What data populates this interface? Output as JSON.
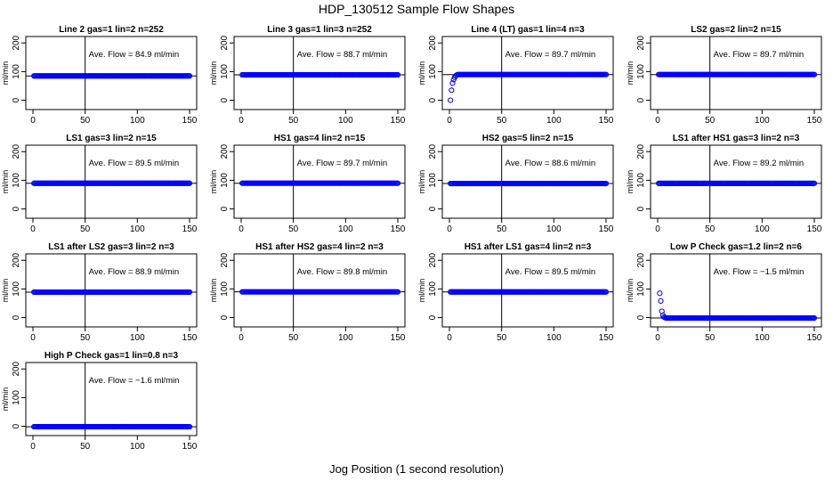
{
  "page": {
    "title": "HDP_130512  Sample Flow Shapes",
    "xlabel": "Jog Position (1 second resolution)"
  },
  "style": {
    "point_color": "#0000ff",
    "line_color": "#000000"
  },
  "chart_data": [
    {
      "type": "scatter",
      "title": "Line 2 gas=1 lin=2 n=252",
      "ylabel": "ml/min",
      "xlim": [
        0,
        150
      ],
      "ylim": [
        -20,
        210
      ],
      "xticks": [
        0,
        50,
        100,
        150
      ],
      "yticks": [
        0,
        100,
        200
      ],
      "vline": 50,
      "hline": 84.9,
      "annotation": "Ave. Flow = 84.9  ml/min",
      "series": [
        {
          "x_start": 1,
          "x_end": 150,
          "y_start": 84.9,
          "y_end": 84.9,
          "ramp": []
        }
      ]
    },
    {
      "type": "scatter",
      "title": "Line 3 gas=1 lin=3 n=252",
      "ylabel": "ml/min",
      "xlim": [
        0,
        150
      ],
      "ylim": [
        -20,
        210
      ],
      "xticks": [
        0,
        50,
        100,
        150
      ],
      "yticks": [
        0,
        100,
        200
      ],
      "vline": 50,
      "hline": 88.7,
      "annotation": "Ave. Flow = 88.7  ml/min",
      "series": [
        {
          "x_start": 1,
          "x_end": 150,
          "y_start": 88.7,
          "y_end": 88.7,
          "ramp": []
        }
      ]
    },
    {
      "type": "scatter",
      "title": "Line 4 (LT) gas=1 lin=4 n=3",
      "ylabel": "ml/min",
      "xlim": [
        0,
        150
      ],
      "ylim": [
        -20,
        210
      ],
      "xticks": [
        0,
        50,
        100,
        150
      ],
      "yticks": [
        0,
        100,
        200
      ],
      "vline": 50,
      "hline": 89.7,
      "annotation": "Ave. Flow = 89.7  ml/min",
      "series": [
        {
          "x_start": 8,
          "x_end": 150,
          "y_start": 89.7,
          "y_end": 89.7,
          "ramp": [
            [
              1,
              0
            ],
            [
              2,
              35
            ],
            [
              3,
              60
            ],
            [
              4,
              72
            ],
            [
              5,
              80
            ],
            [
              6,
              85
            ],
            [
              7,
              88
            ]
          ]
        }
      ]
    },
    {
      "type": "scatter",
      "title": "LS2 gas=2 lin=2 n=15",
      "ylabel": "ml/min",
      "xlim": [
        0,
        150
      ],
      "ylim": [
        -20,
        210
      ],
      "xticks": [
        0,
        50,
        100,
        150
      ],
      "yticks": [
        0,
        100,
        200
      ],
      "vline": 50,
      "hline": 89.7,
      "annotation": "Ave. Flow = 89.7  ml/min",
      "series": [
        {
          "x_start": 1,
          "x_end": 150,
          "y_start": 89.7,
          "y_end": 89.7,
          "ramp": []
        }
      ]
    },
    {
      "type": "scatter",
      "title": "LS1 gas=3 lin=2 n=15",
      "ylabel": "ml/min",
      "xlim": [
        0,
        150
      ],
      "ylim": [
        -20,
        210
      ],
      "xticks": [
        0,
        50,
        100,
        150
      ],
      "yticks": [
        0,
        100,
        200
      ],
      "vline": 50,
      "hline": 89.5,
      "annotation": "Ave. Flow = 89.5  ml/min",
      "series": [
        {
          "x_start": 1,
          "x_end": 150,
          "y_start": 89.5,
          "y_end": 89.5,
          "ramp": []
        }
      ]
    },
    {
      "type": "scatter",
      "title": "HS1 gas=4 lin=2 n=15",
      "ylabel": "ml/min",
      "xlim": [
        0,
        150
      ],
      "ylim": [
        -20,
        210
      ],
      "xticks": [
        0,
        50,
        100,
        150
      ],
      "yticks": [
        0,
        100,
        200
      ],
      "vline": 50,
      "hline": 89.7,
      "annotation": "Ave. Flow = 89.7  ml/min",
      "series": [
        {
          "x_start": 1,
          "x_end": 150,
          "y_start": 89.7,
          "y_end": 89.7,
          "ramp": []
        }
      ]
    },
    {
      "type": "scatter",
      "title": "HS2 gas=5 lin=2 n=15",
      "ylabel": "ml/min",
      "xlim": [
        0,
        150
      ],
      "ylim": [
        -20,
        210
      ],
      "xticks": [
        0,
        50,
        100,
        150
      ],
      "yticks": [
        0,
        100,
        200
      ],
      "vline": 50,
      "hline": 88.6,
      "annotation": "Ave. Flow = 88.6  ml/min",
      "series": [
        {
          "x_start": 1,
          "x_end": 150,
          "y_start": 88.6,
          "y_end": 88.6,
          "ramp": []
        }
      ]
    },
    {
      "type": "scatter",
      "title": "LS1 after HS1 gas=3 lin=2 n=3",
      "ylabel": "ml/min",
      "xlim": [
        0,
        150
      ],
      "ylim": [
        -20,
        210
      ],
      "xticks": [
        0,
        50,
        100,
        150
      ],
      "yticks": [
        0,
        100,
        200
      ],
      "vline": 50,
      "hline": 89.2,
      "annotation": "Ave. Flow = 89.2  ml/min",
      "series": [
        {
          "x_start": 1,
          "x_end": 150,
          "y_start": 89.2,
          "y_end": 89.2,
          "ramp": []
        }
      ]
    },
    {
      "type": "scatter",
      "title": "LS1 after LS2 gas=3 lin=2 n=3",
      "ylabel": "ml/min",
      "xlim": [
        0,
        150
      ],
      "ylim": [
        -20,
        210
      ],
      "xticks": [
        0,
        50,
        100,
        150
      ],
      "yticks": [
        0,
        100,
        200
      ],
      "vline": 50,
      "hline": 88.9,
      "annotation": "Ave. Flow = 88.9  ml/min",
      "series": [
        {
          "x_start": 1,
          "x_end": 150,
          "y_start": 88.9,
          "y_end": 88.9,
          "ramp": []
        }
      ]
    },
    {
      "type": "scatter",
      "title": "HS1 after HS2 gas=4 lin=2 n=3",
      "ylabel": "ml/min",
      "xlim": [
        0,
        150
      ],
      "ylim": [
        -20,
        210
      ],
      "xticks": [
        0,
        50,
        100,
        150
      ],
      "yticks": [
        0,
        100,
        200
      ],
      "vline": 50,
      "hline": 89.8,
      "annotation": "Ave. Flow = 89.8  ml/min",
      "series": [
        {
          "x_start": 1,
          "x_end": 150,
          "y_start": 89.8,
          "y_end": 89.8,
          "ramp": []
        }
      ]
    },
    {
      "type": "scatter",
      "title": "HS1 after LS1 gas=4 lin=2 n=3",
      "ylabel": "ml/min",
      "xlim": [
        0,
        150
      ],
      "ylim": [
        -20,
        210
      ],
      "xticks": [
        0,
        50,
        100,
        150
      ],
      "yticks": [
        0,
        100,
        200
      ],
      "vline": 50,
      "hline": 89.5,
      "annotation": "Ave. Flow = 89.5  ml/min",
      "series": [
        {
          "x_start": 1,
          "x_end": 150,
          "y_start": 89.5,
          "y_end": 89.5,
          "ramp": []
        }
      ]
    },
    {
      "type": "scatter",
      "title": "Low P Check gas=1.2 lin=2 n=6",
      "ylabel": "ml/min",
      "xlim": [
        0,
        150
      ],
      "ylim": [
        -20,
        210
      ],
      "xticks": [
        0,
        50,
        100,
        150
      ],
      "yticks": [
        0,
        100,
        200
      ],
      "vline": 50,
      "hline": -1.5,
      "annotation": "Ave. Flow = −1.5  ml/min",
      "series": [
        {
          "x_start": 8,
          "x_end": 150,
          "y_start": -1.5,
          "y_end": -1.5,
          "ramp": [
            [
              2,
              85
            ],
            [
              3,
              58
            ],
            [
              4,
              22
            ],
            [
              5,
              8
            ],
            [
              6,
              2
            ],
            [
              7,
              0
            ]
          ]
        }
      ]
    },
    {
      "type": "scatter",
      "title": "High P Check gas=1 lin=0.8 n=3",
      "ylabel": "ml/min",
      "xlim": [
        0,
        150
      ],
      "ylim": [
        -20,
        210
      ],
      "xticks": [
        0,
        50,
        100,
        150
      ],
      "yticks": [
        0,
        100,
        200
      ],
      "vline": 50,
      "hline": -1.6,
      "annotation": "Ave. Flow = −1.6  ml/min",
      "series": [
        {
          "x_start": 1,
          "x_end": 150,
          "y_start": -1.6,
          "y_end": -1.6,
          "ramp": []
        }
      ]
    }
  ]
}
